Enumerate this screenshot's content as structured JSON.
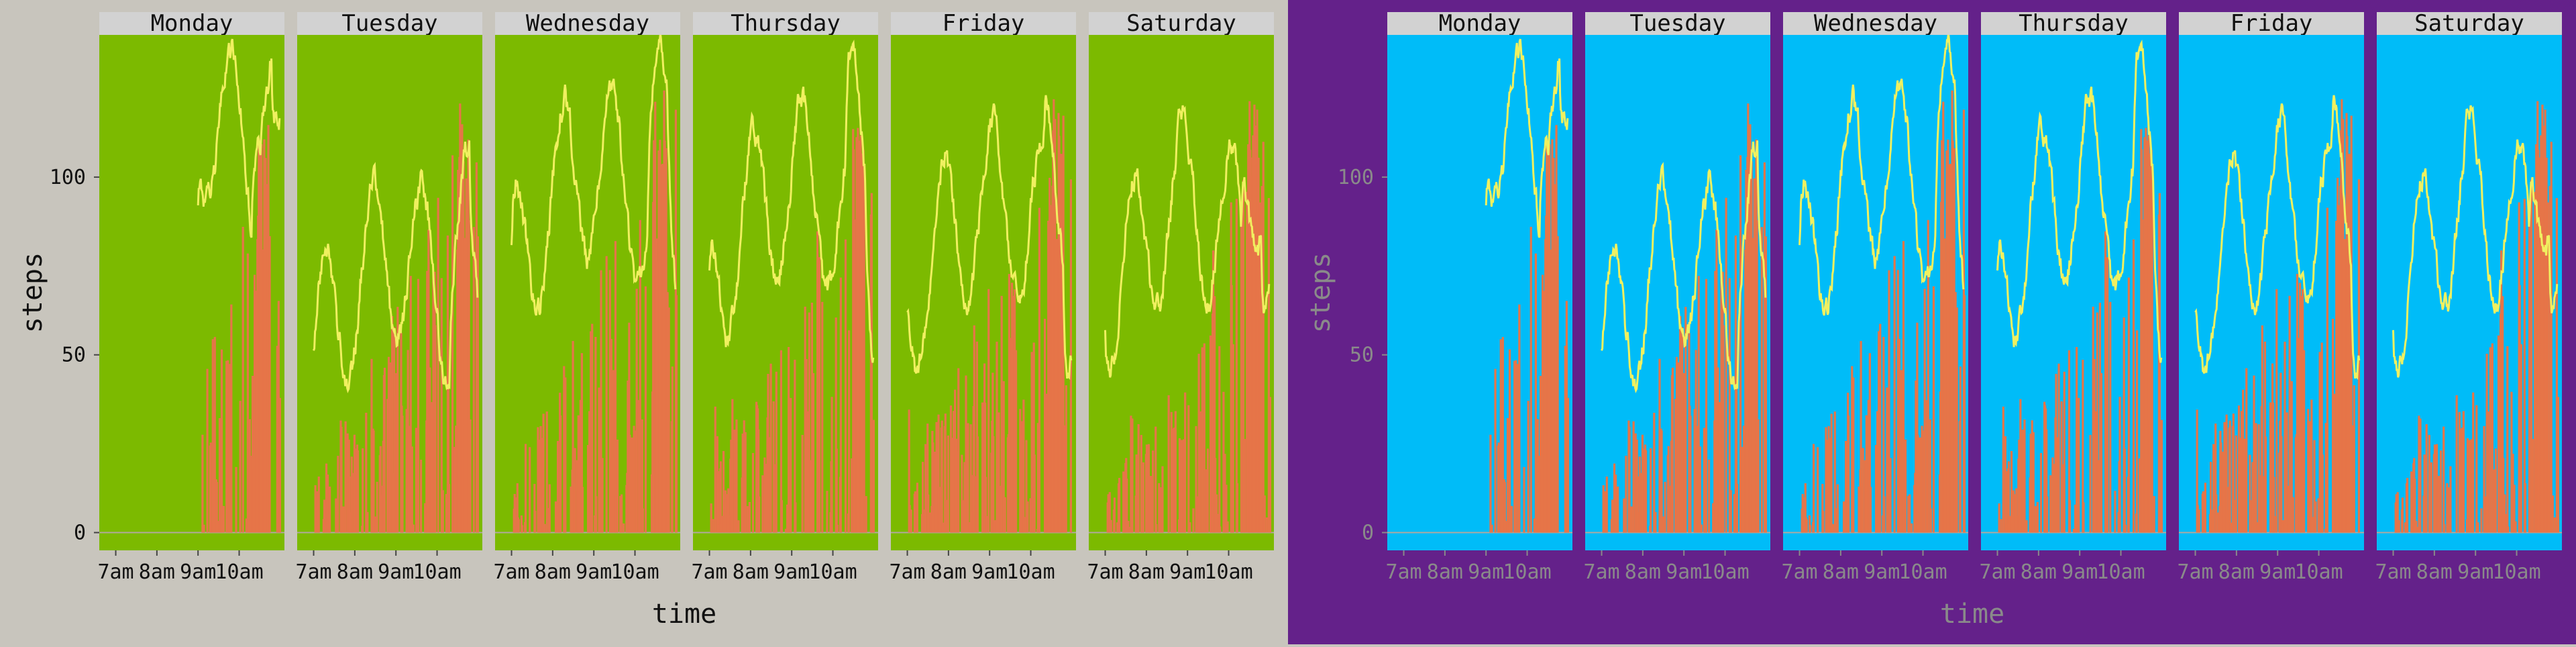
{
  "chart_data": [
    {
      "type": "bar+line",
      "xlabel": "time",
      "ylabel": "steps",
      "ylim": [
        -5,
        140
      ],
      "yticks": [
        0,
        50,
        100
      ],
      "xlim": [
        6.6,
        11.1
      ],
      "xticks": [
        7,
        8,
        9,
        10
      ],
      "xtick_labels": [
        "7am",
        "8am",
        "9am",
        "10am"
      ],
      "days": [
        "Monday",
        "Tuesday",
        "Wednesday",
        "Thursday",
        "Friday",
        "Saturday"
      ],
      "colors": {
        "background": "#c8c5bd",
        "panel": "#7cba00",
        "strip": "#d2d2d2",
        "bar": "#e67548",
        "line": "#f0f060",
        "text": "#111111",
        "axis": "#444444"
      }
    },
    {
      "type": "bar+line",
      "xlabel": "time",
      "ylabel": "steps",
      "ylim": [
        -5,
        140
      ],
      "yticks": [
        0,
        50,
        100
      ],
      "xlim": [
        6.6,
        11.1
      ],
      "xticks": [
        7,
        8,
        9,
        10
      ],
      "xtick_labels": [
        "7am",
        "8am",
        "9am",
        "10am"
      ],
      "days": [
        "Monday",
        "Tuesday",
        "Wednesday",
        "Thursday",
        "Friday",
        "Saturday"
      ],
      "colors": {
        "background": "#64218a",
        "panel": "#00bcf8",
        "strip": "#d2d2d2",
        "bar": "#e67548",
        "line": "#f0f060",
        "text": "#8a8a8a",
        "axis": "#8a8a8a"
      }
    }
  ]
}
